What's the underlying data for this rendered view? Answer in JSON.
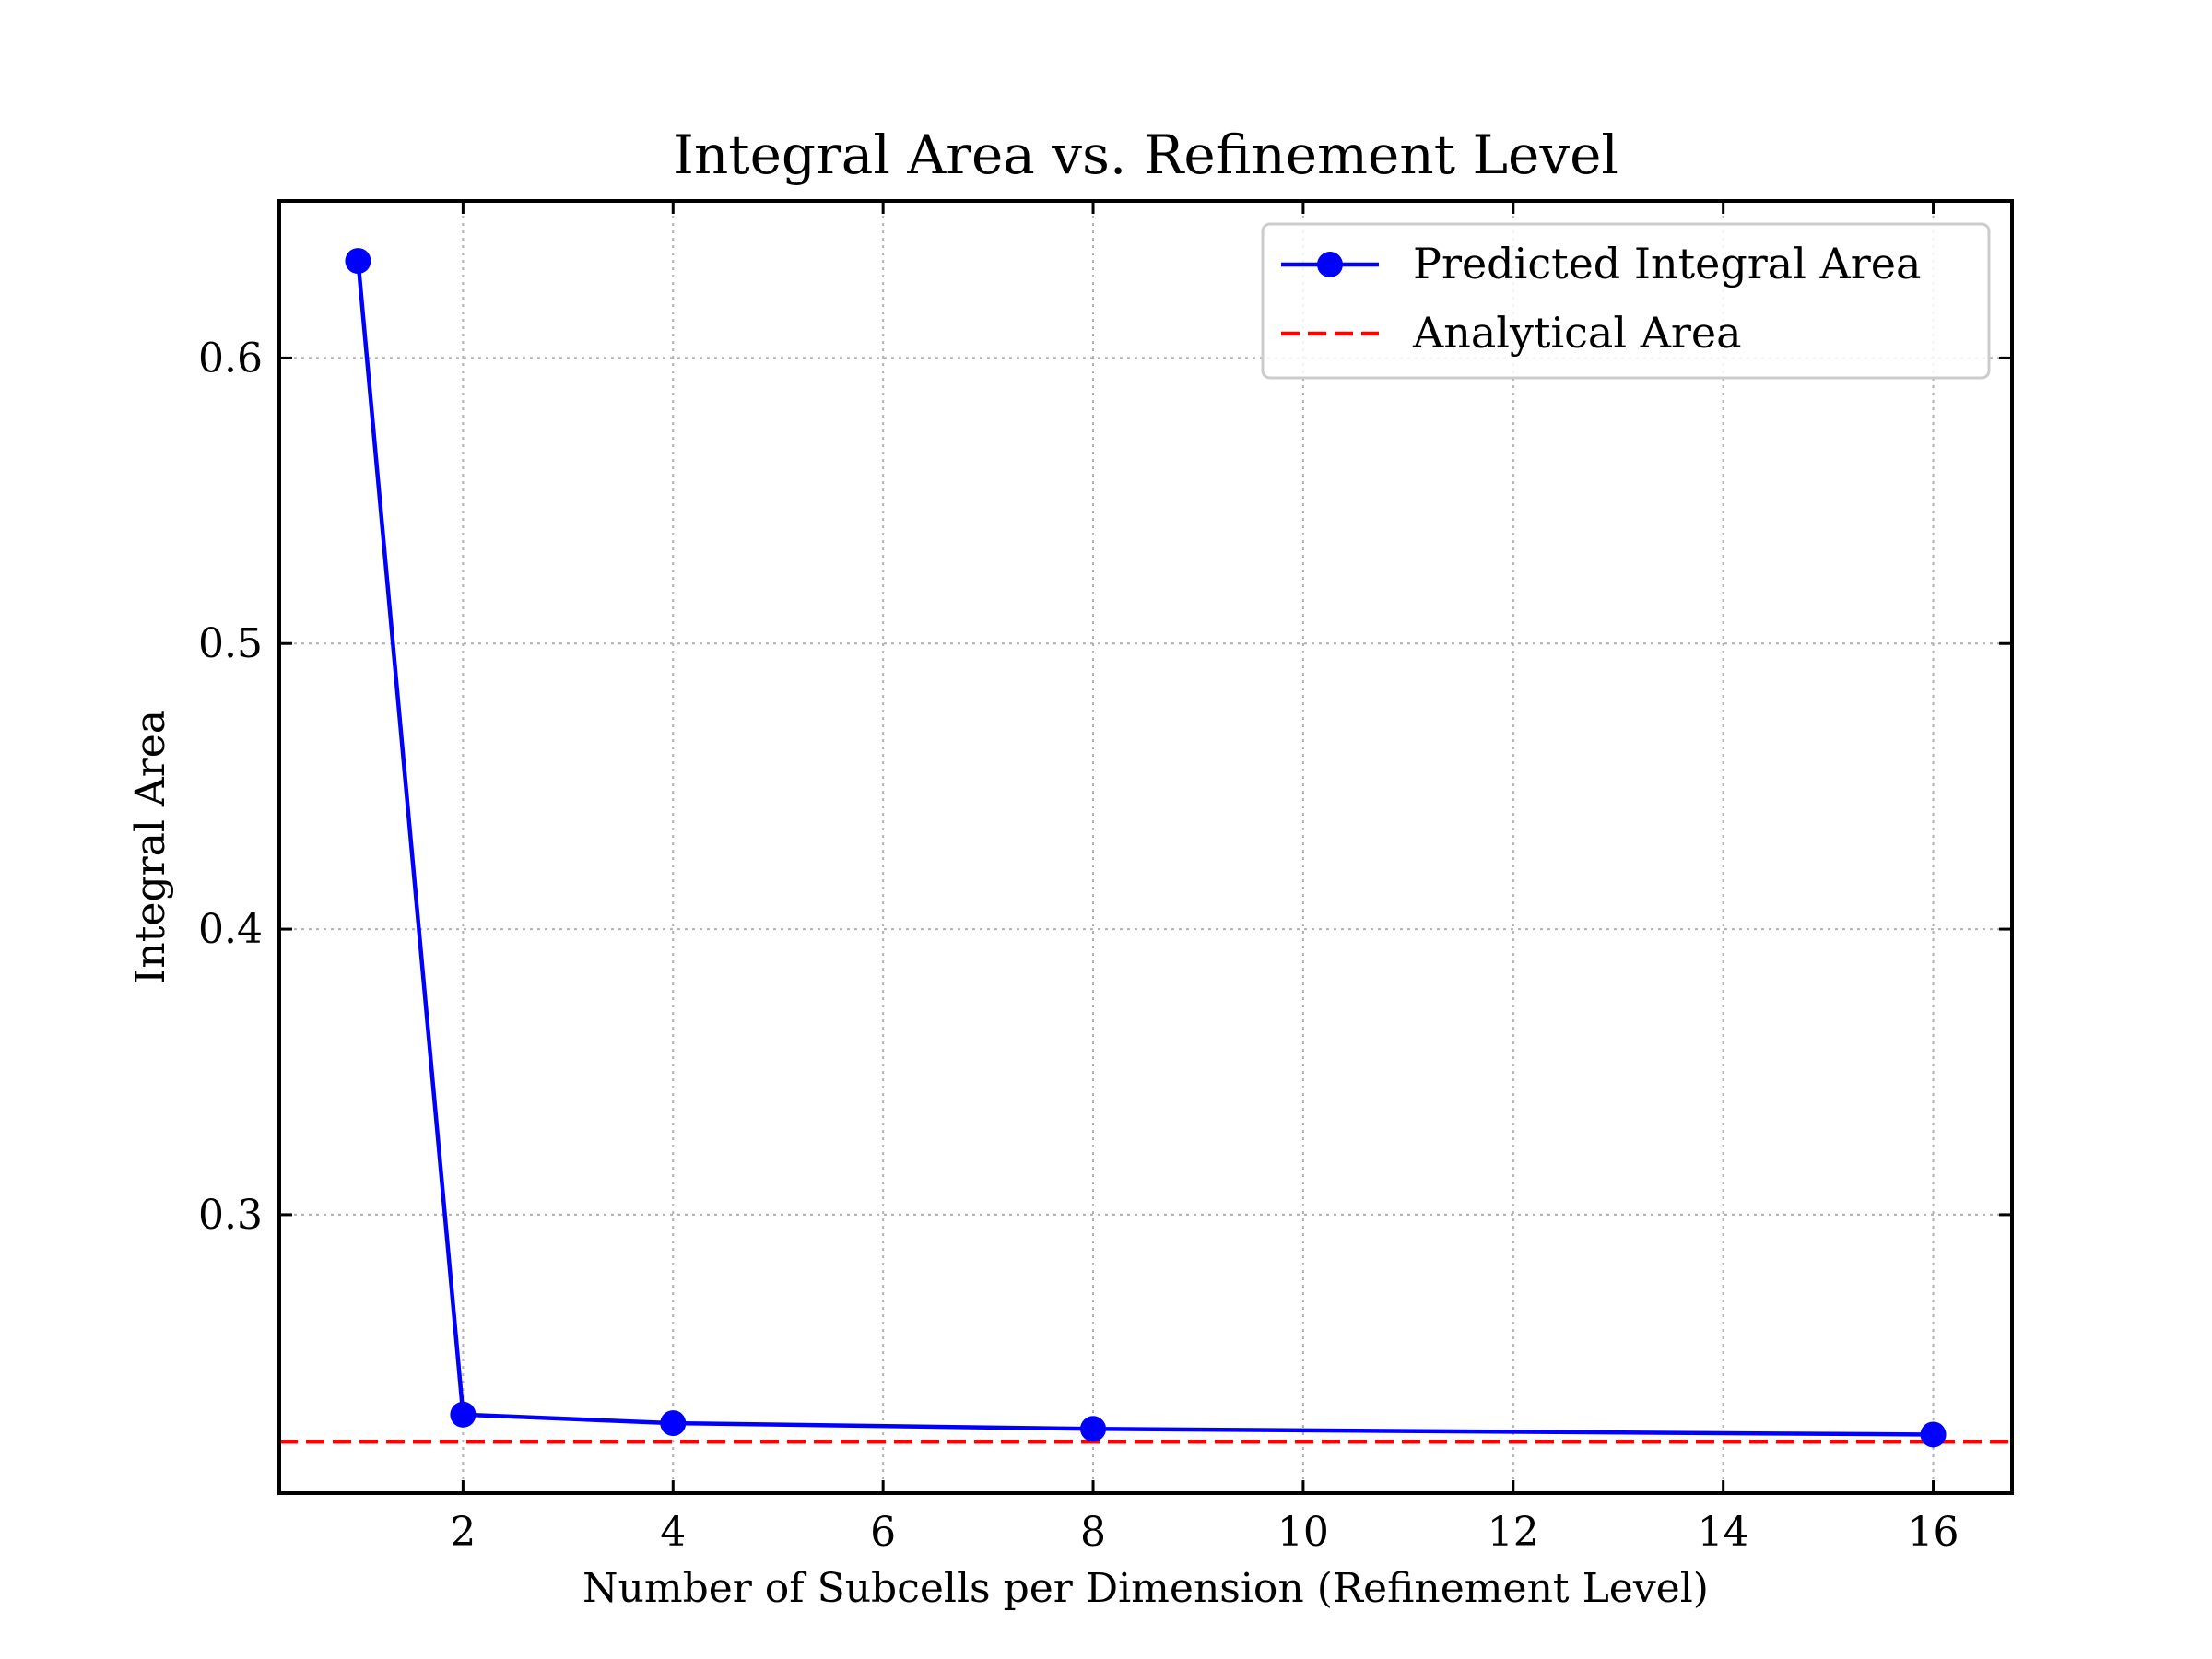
{
  "chart_data": {
    "type": "line",
    "title": "Integral Area vs. Refinement Level",
    "xlabel": "Number of Subcells per Dimension (Refinement Level)",
    "ylabel": "Integral Area",
    "xlim": [
      0.25,
      16.75
    ],
    "ylim": [
      0.2025,
      0.655
    ],
    "xticks": [
      2,
      4,
      6,
      8,
      10,
      12,
      14,
      16
    ],
    "xtick_labels": [
      "2",
      "4",
      "6",
      "8",
      "10",
      "12",
      "14",
      "16"
    ],
    "yticks": [
      0.3,
      0.4,
      0.5,
      0.6
    ],
    "ytick_labels": [
      "0.3",
      "0.4",
      "0.5",
      "0.6"
    ],
    "grid": true,
    "legend_position": "top-right",
    "series": [
      {
        "name": "Predicted Integral Area",
        "style": "solid-line-with-circle-markers",
        "color": "#0000ff",
        "x": [
          1,
          2,
          4,
          8,
          16
        ],
        "y": [
          0.634,
          0.23,
          0.227,
          0.225,
          0.223
        ]
      },
      {
        "name": "Analytical Area",
        "style": "dashed-horizontal-line",
        "color": "#ff0000",
        "y": 0.2205
      }
    ]
  }
}
